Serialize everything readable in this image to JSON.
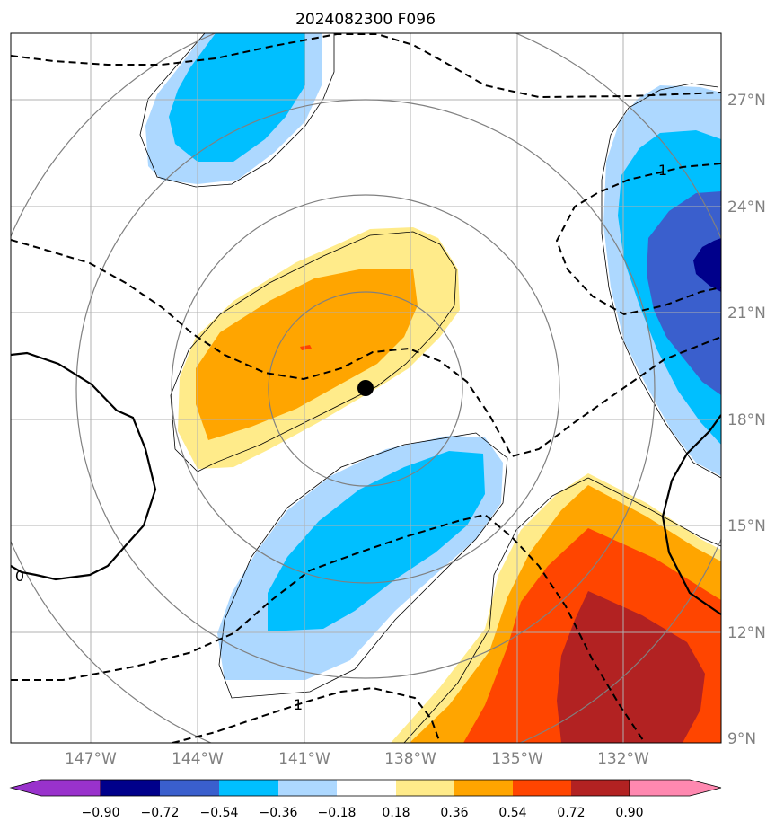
{
  "title": "2024082300 F096",
  "map": {
    "lat_labels": [
      "27°N",
      "24°N",
      "21°N",
      "18°N",
      "15°N",
      "12°N",
      "9°N"
    ],
    "lon_labels": [
      "147°W",
      "144°W",
      "141°W",
      "138°W",
      "135°W",
      "132°W"
    ],
    "contour_labels": [
      "1",
      "0",
      "1"
    ],
    "storm_center": {
      "lat": 18.9,
      "lon": -139.2
    }
  },
  "colorbar": {
    "labels": [
      "−0.90",
      "−0.72",
      "−0.54",
      "−0.36",
      "−0.18",
      "0.18",
      "0.36",
      "0.54",
      "0.72",
      "0.90"
    ],
    "colors": [
      "#9932cc",
      "#00008b",
      "#3a5fcd",
      "#00bfff",
      "#add8ff",
      "#ffffff",
      "#ffeb8a",
      "#ffa500",
      "#ff4500",
      "#b22222",
      "#ff88b0"
    ]
  },
  "colors": {
    "grid": "#b0b0b0",
    "range_rings": "#808080",
    "storm_marker": "#000000"
  }
}
